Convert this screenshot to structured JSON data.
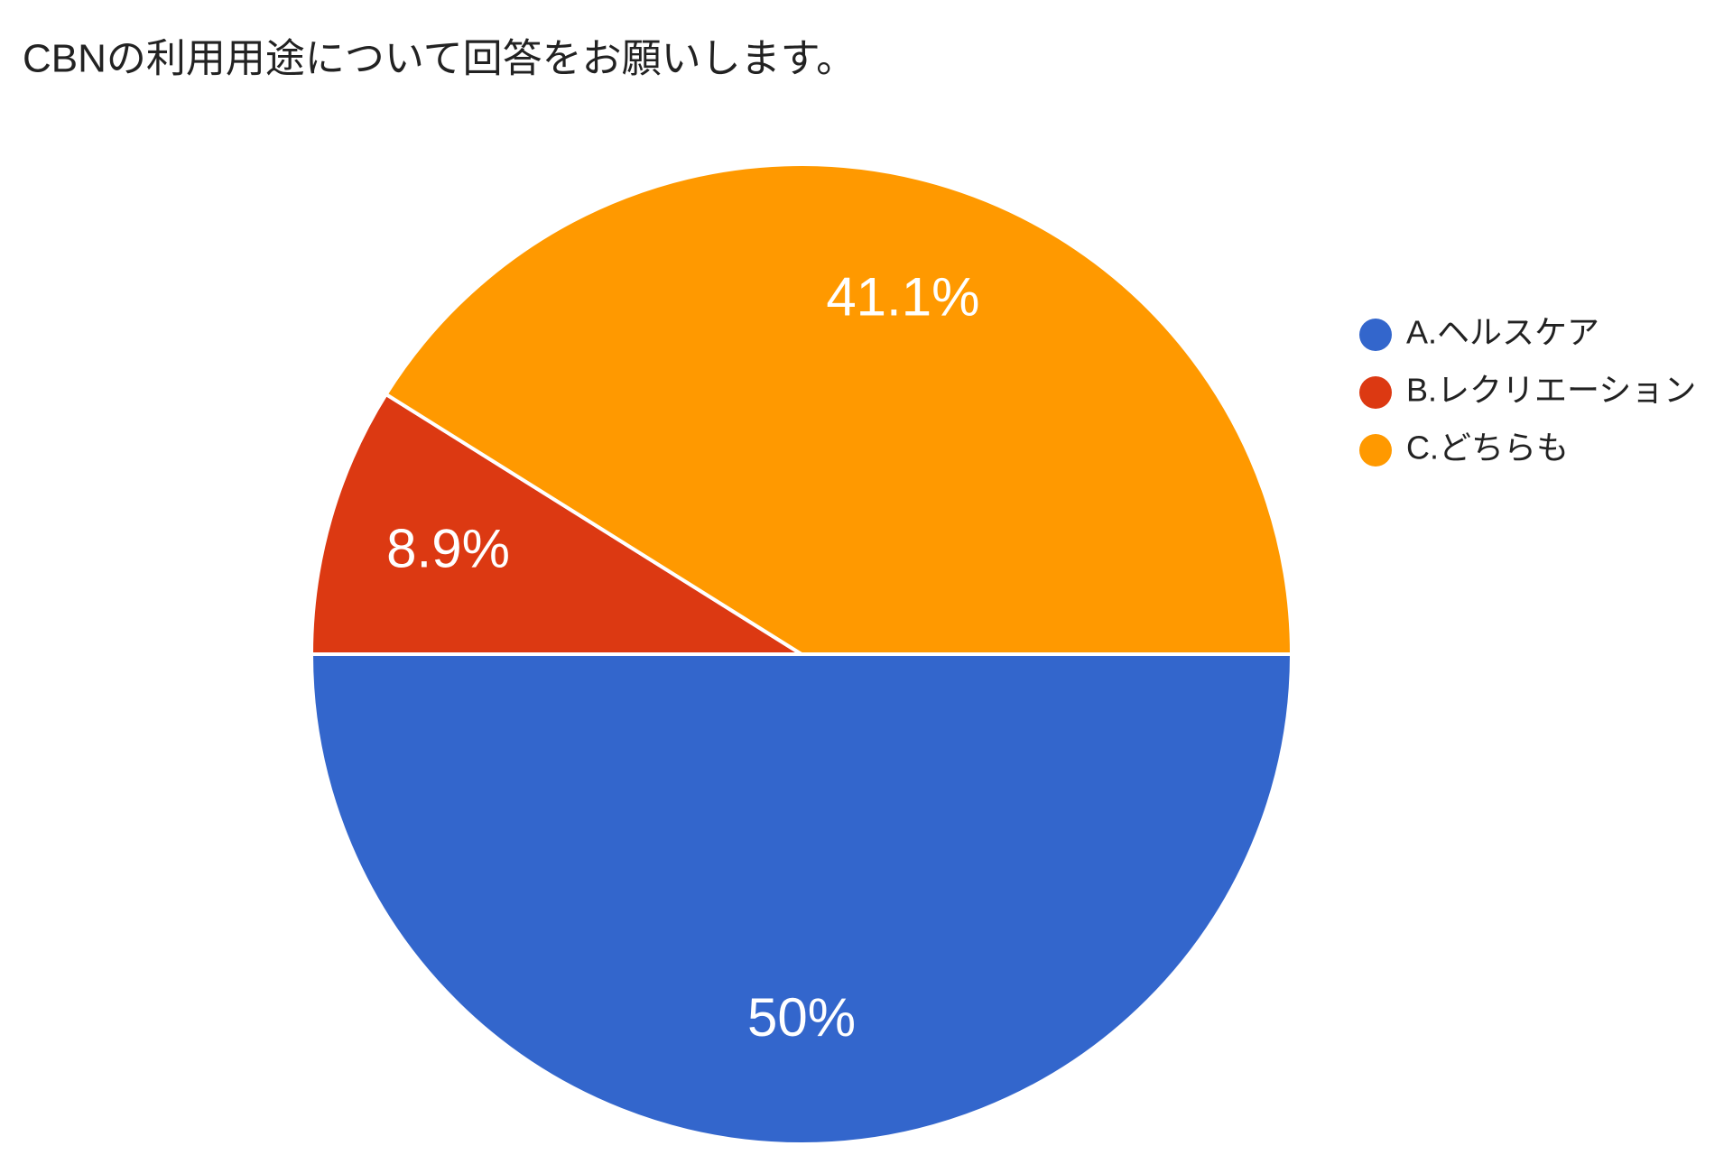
{
  "chart_data": {
    "type": "pie",
    "title": "CBNの利用用途について回答をお願いします。",
    "categories": [
      "A.ヘルスケア",
      "B.レクリエーション",
      "C.どちらも"
    ],
    "values": [
      50,
      8.9,
      41.1
    ],
    "value_labels": [
      "50%",
      "8.9%",
      "41.1%"
    ],
    "colors": [
      "#3366cc",
      "#dc3912",
      "#ff9900"
    ],
    "legend": "right"
  }
}
